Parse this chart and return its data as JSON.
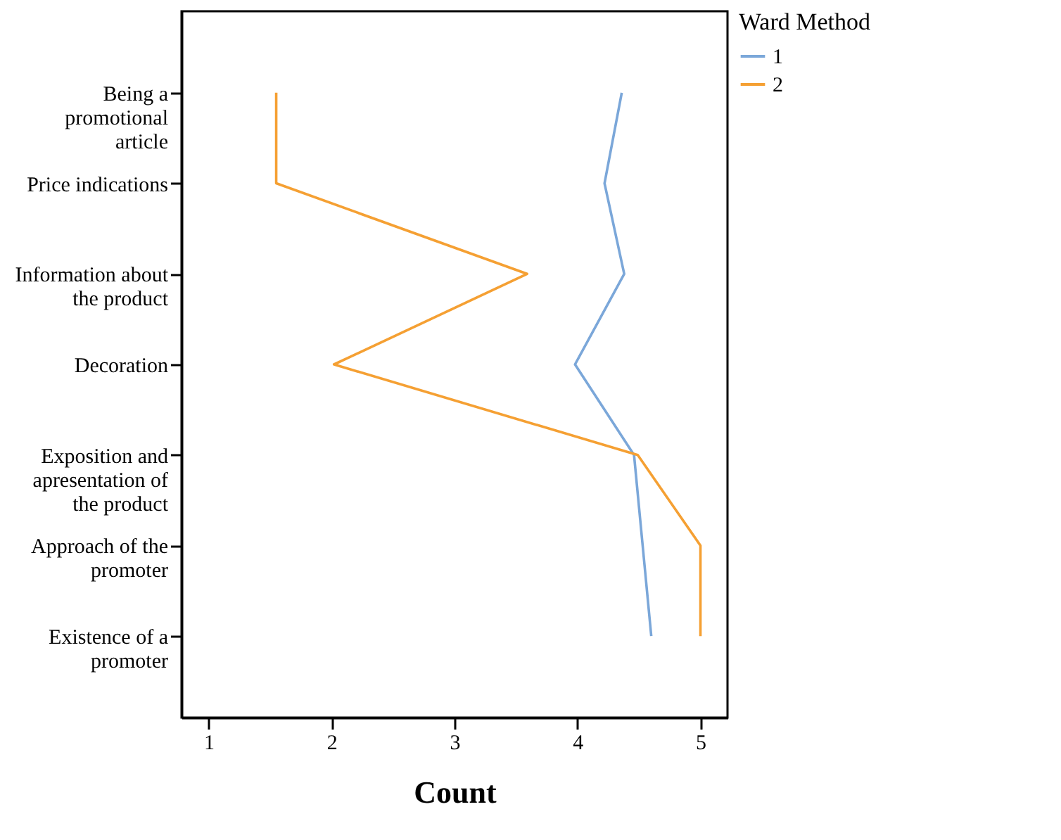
{
  "chart_data": {
    "type": "line",
    "orientation": "horizontal",
    "xlabel": "Count",
    "legend_title": "Ward Method",
    "legend": "top right",
    "grid": false,
    "categories": [
      "Being a promotional article",
      "Price indications",
      "Information about the product",
      "Decoration",
      "Exposition and apresentation of the product",
      "Approach of the promoter",
      "Existence of a promoter"
    ],
    "xlim": [
      0.78,
      5.22
    ],
    "xticks": [
      1,
      2,
      3,
      4,
      5
    ],
    "series": [
      {
        "name": "1",
        "color": "#7ba7d9",
        "values": [
          4.36,
          4.22,
          4.38,
          3.98,
          4.46,
          4.53,
          4.6
        ]
      },
      {
        "name": "2",
        "color": "#f5a033",
        "values": [
          1.55,
          1.55,
          3.59,
          2.02,
          4.49,
          5,
          5
        ]
      }
    ]
  }
}
